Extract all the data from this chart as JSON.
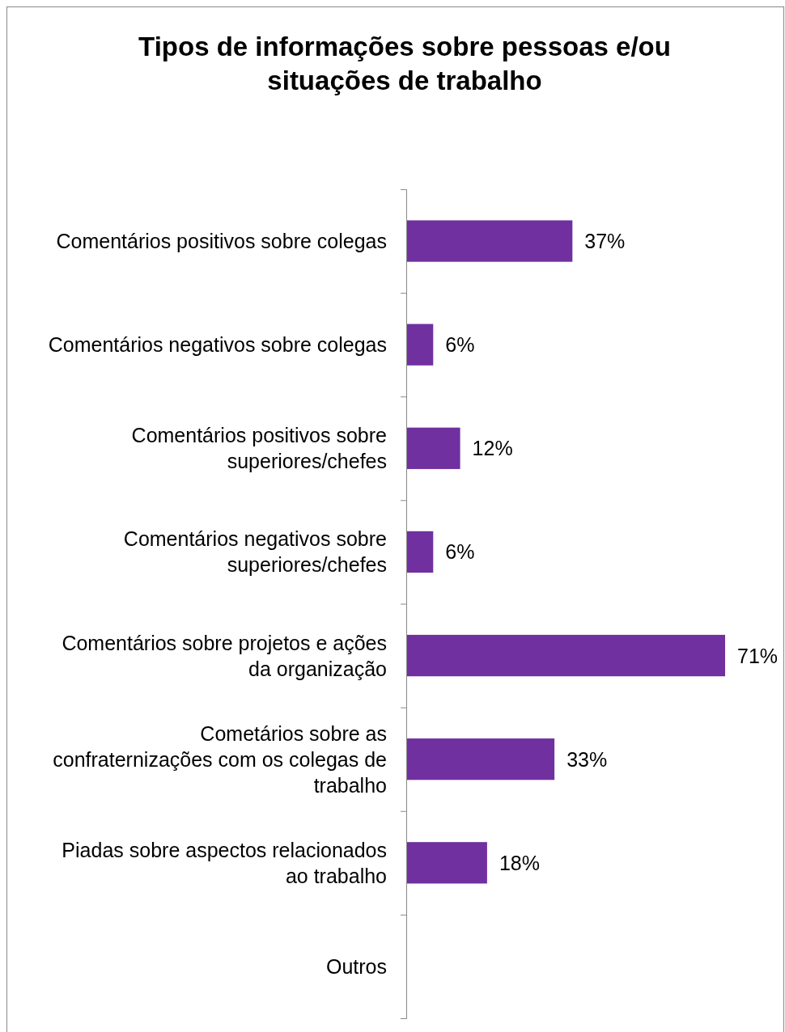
{
  "chart_data": {
    "type": "bar",
    "orientation": "horizontal",
    "title": "Tipos de informações sobre pessoas e/ou situações de trabalho",
    "categories": [
      "Comentários positivos sobre colegas",
      "Comentários negativos  sobre colegas",
      "Comentários positivos sobre superiores/chefes",
      "Comentários negativos sobre superiores/chefes",
      "Comentários sobre projetos e ações da organização",
      "Cometários sobre as confraternizações com os colegas de trabalho",
      "Piadas sobre aspectos relacionados ao trabalho",
      "Outros"
    ],
    "values": [
      37,
      6,
      12,
      6,
      71,
      33,
      18,
      null
    ],
    "value_labels": [
      "37%",
      "6%",
      "12%",
      "6%",
      "71%",
      "33%",
      "18%",
      null
    ],
    "color": "#7030a0"
  }
}
